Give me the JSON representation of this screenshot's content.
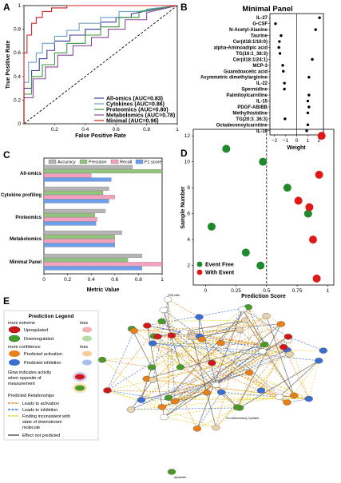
{
  "panels": [
    "A",
    "B",
    "C",
    "D",
    "E"
  ],
  "chart_data": [
    {
      "id": "A",
      "type": "line",
      "title": "",
      "xlabel": "False Positive Rate",
      "ylabel": "True Positive Rate",
      "xlim": [
        0,
        1
      ],
      "ylim": [
        0,
        1
      ],
      "xticks": [
        "0.2",
        "0.4",
        "0.6",
        "0.8",
        "1"
      ],
      "yticks": [
        "0",
        "0.2",
        "0.4",
        "0.6",
        "0.8",
        "1"
      ],
      "grid": false,
      "legend_position": "bottom-right",
      "series": [
        {
          "name": "All-omics (AUC=0.83)",
          "color": "#3b3b9a",
          "x": [
            0,
            0,
            0.05,
            0.05,
            0.1,
            0.1,
            0.15,
            0.15,
            0.2,
            0.2,
            0.3,
            0.3,
            0.4,
            0.4,
            0.5,
            0.5,
            0.6,
            0.6,
            0.7,
            0.7,
            1
          ],
          "y": [
            0,
            0.3,
            0.3,
            0.45,
            0.45,
            0.55,
            0.55,
            0.62,
            0.62,
            0.7,
            0.7,
            0.75,
            0.75,
            0.8,
            0.8,
            0.86,
            0.86,
            0.9,
            0.9,
            0.93,
            1
          ]
        },
        {
          "name": "Cytokines (AUC=0.86)",
          "color": "#6aa0cf",
          "x": [
            0,
            0,
            0.03,
            0.03,
            0.08,
            0.08,
            0.12,
            0.12,
            0.2,
            0.2,
            0.28,
            0.28,
            0.36,
            0.36,
            0.5,
            0.5,
            0.62,
            0.62,
            0.8,
            0.8,
            1
          ],
          "y": [
            0,
            0.35,
            0.35,
            0.52,
            0.52,
            0.6,
            0.6,
            0.68,
            0.68,
            0.74,
            0.74,
            0.79,
            0.79,
            0.85,
            0.85,
            0.9,
            0.9,
            0.95,
            0.95,
            0.97,
            1
          ]
        },
        {
          "name": "Proteomics (AUC=0.80)",
          "color": "#3a9a3a",
          "x": [
            0,
            0,
            0.05,
            0.05,
            0.12,
            0.12,
            0.2,
            0.2,
            0.28,
            0.28,
            0.4,
            0.4,
            0.5,
            0.5,
            0.62,
            0.62,
            0.75,
            0.75,
            1
          ],
          "y": [
            0,
            0.25,
            0.25,
            0.4,
            0.4,
            0.5,
            0.5,
            0.6,
            0.6,
            0.68,
            0.68,
            0.75,
            0.75,
            0.82,
            0.82,
            0.9,
            0.9,
            0.95,
            1
          ]
        },
        {
          "name": "Metabolomics (AUC=0.78)",
          "color": "#8a4a9a",
          "x": [
            0,
            0,
            0.06,
            0.06,
            0.14,
            0.14,
            0.22,
            0.22,
            0.32,
            0.32,
            0.44,
            0.44,
            0.55,
            0.55,
            0.66,
            0.66,
            0.8,
            0.8,
            1
          ],
          "y": [
            0,
            0.22,
            0.22,
            0.38,
            0.38,
            0.48,
            0.48,
            0.58,
            0.58,
            0.66,
            0.66,
            0.73,
            0.73,
            0.8,
            0.8,
            0.88,
            0.88,
            0.94,
            1
          ]
        },
        {
          "name": "Minimal (AUC=0.96)",
          "color": "#d02020",
          "x": [
            0,
            0,
            0.02,
            0.02,
            0.05,
            0.05,
            0.08,
            0.08,
            0.12,
            0.12,
            0.18,
            0.18,
            0.28,
            0.28,
            1
          ],
          "y": [
            0,
            0.6,
            0.6,
            0.75,
            0.75,
            0.85,
            0.85,
            0.9,
            0.9,
            0.95,
            0.95,
            0.98,
            0.98,
            1,
            1
          ]
        }
      ],
      "reference_line": {
        "x": [
          0,
          1
        ],
        "y": [
          0,
          1
        ],
        "style": "dashed"
      }
    },
    {
      "id": "B",
      "type": "scatter",
      "title": "Minimal Panel",
      "xlabel": "Weight",
      "xlim": [
        -2.4,
        2.4
      ],
      "xticks": [
        "-2",
        "-1",
        "0",
        "1",
        "2"
      ],
      "categories": [
        "IL-27",
        "G-CSF",
        "N-Acetyl-Alanine",
        "Taurine",
        "Cer(d18:1/16:0)",
        "alpha-Aminoadipic acid",
        "TG(16:1_38:3)",
        "Cer(d18:1/24:1)",
        "MCP-3",
        "Guanidoacetic acid",
        "Asymmetric dimethylarginine",
        "IL-22",
        "Spermidine",
        "Palmitoylcarnitine",
        "IL-15",
        "PDGF-AB/BB",
        "Methylhistidine",
        "TG(20:3_36:3)",
        "Octadecenoylcarnitine",
        "IL-10"
      ],
      "values": [
        2.05,
        -1.9,
        1.7,
        -1.4,
        -1.55,
        -1.6,
        -1.5,
        1.4,
        -1.25,
        -1.2,
        1.1,
        -1.1,
        -1.1,
        1.1,
        1.0,
        1.1,
        1.0,
        -1.05,
        1.0,
        0.9
      ]
    },
    {
      "id": "C",
      "type": "bar",
      "orientation": "horizontal",
      "xlabel": "Metric Value",
      "xlim": [
        0,
        1
      ],
      "xticks": [
        "0",
        "0.2",
        "0.4",
        "0.6",
        "0.8",
        "1"
      ],
      "legend_position": "top",
      "categories": [
        "All-omics",
        "Cytokine profiling",
        "Proteomics",
        "Metabolomics",
        "Minimal Panel"
      ],
      "series": [
        {
          "name": "Accuracy",
          "color": "#b5b5b5",
          "values": [
            0.75,
            0.55,
            0.52,
            0.66,
            0.83
          ]
        },
        {
          "name": "Precision",
          "color": "#93c47d",
          "values": [
            1.0,
            0.5,
            0.43,
            0.6,
            0.71
          ]
        },
        {
          "name": "Recall",
          "color": "#f4a0c0",
          "values": [
            0.4,
            0.6,
            0.45,
            0.6,
            1.0
          ]
        },
        {
          "name": "F1 score",
          "color": "#6d9eeb",
          "values": [
            0.57,
            0.55,
            0.44,
            0.6,
            0.83
          ]
        }
      ]
    },
    {
      "id": "D",
      "type": "scatter",
      "xlabel": "Prediction Score",
      "ylabel": "Sample Number",
      "xlim": [
        -0.1,
        1.05
      ],
      "ylim": [
        0.5,
        12.5
      ],
      "xticks": [
        "0",
        "0.25",
        "0.5",
        "0.75",
        "1"
      ],
      "yticks": [
        "2",
        "4",
        "6",
        "8",
        "10",
        "12"
      ],
      "threshold": 0.5,
      "legend_position": "bottom-left",
      "series": [
        {
          "name": "Event Free",
          "color": "#1f8a2a",
          "x": [
            0.17,
            0.47,
            0.67,
            0.05,
            0.33,
            0.84,
            0.45
          ],
          "y": [
            11,
            10,
            8,
            5,
            3,
            6,
            2
          ]
        },
        {
          "name": "With Event",
          "color": "#e01818",
          "x": [
            0.95,
            0.93,
            0.76,
            0.85,
            0.88,
            0.91
          ],
          "y": [
            12,
            9,
            7,
            6.5,
            4,
            1
          ]
        }
      ]
    }
  ],
  "network": {
    "legend_title": "Prediction Legend",
    "more_extreme": "more extreme",
    "less": "less",
    "upregulated": "Upregulated",
    "downregulated": "Downregulated",
    "more_confidence": "more confidence",
    "predicted_activation": "Predicted activation",
    "predicted_inhibition": "Predicted inhibition",
    "glow_text_1": "Glow indicates activity",
    "glow_text_2": "when opposite of",
    "glow_text_3": "measurement",
    "relationships_title": "Predicted Relationships",
    "rel_activation": "Leads to activation",
    "rel_inhibition": "Leads to inhibition",
    "rel_inconsistent_1": "Finding inconsistent with",
    "rel_inconsistent_2": "state of downstream",
    "rel_inconsistent_3": "molecule",
    "rel_not_predicted": "Effect not predicted",
    "label_top": "CD8 cells",
    "label_bottom": "Pro-inflammatory Cytokine",
    "label_iso": "apoptosis",
    "colors": {
      "up": "#d01818",
      "down": "#4a9a2a",
      "activation": "#e8801a",
      "inhibition": "#3a6ed0",
      "inconsistent": "#e8d020",
      "not_predicted": "#505050"
    }
  }
}
